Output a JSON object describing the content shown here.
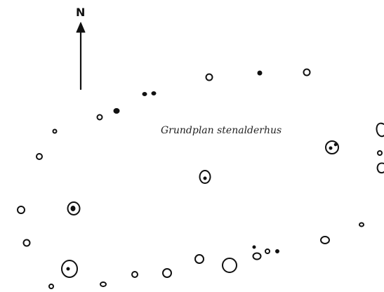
{
  "north_label": "N",
  "caption": "Grundplan stenalderhus",
  "ink_color": "#111111"
}
